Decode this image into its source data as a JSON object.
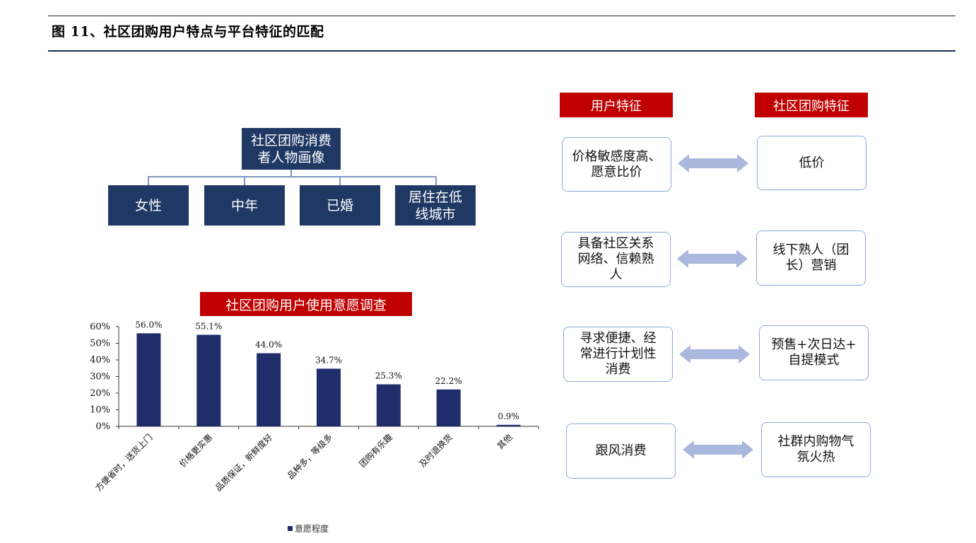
{
  "figure_title": "图 11、社区团购用户特点与平台特征的匹配",
  "persona": {
    "root": "社区团购消费\n者人物画像",
    "children": [
      "女性",
      "中年",
      "已婚",
      "居住在低\n线城市"
    ]
  },
  "survey_title": "社区团购用户使用意愿调查",
  "chart_data": {
    "type": "bar",
    "title": "社区团购用户使用意愿调查",
    "categories": [
      "方便省时，送货上门",
      "价格更实惠",
      "品质保证，新鲜度好",
      "品种多，等级多",
      "团购有乐趣",
      "及时退换货",
      "其他"
    ],
    "series": [
      {
        "name": "意愿程度",
        "values": [
          56.0,
          55.1,
          44.0,
          34.7,
          25.3,
          22.2,
          0.9
        ]
      }
    ],
    "data_labels": [
      "56.0%",
      "55.1%",
      "44.0%",
      "34.7%",
      "25.3%",
      "22.2%",
      "0.9%"
    ],
    "yticks": [
      "0%",
      "10%",
      "20%",
      "30%",
      "40%",
      "50%",
      "60%"
    ],
    "ylim": [
      0,
      60
    ],
    "legend": "bottom",
    "bar_color": "#1f2d6b"
  },
  "legend_label": "意愿程度",
  "match": {
    "user_header": "用户特征",
    "platform_header": "社区团购特征",
    "rows": [
      {
        "user": "价格敏感度高、\n愿意比价",
        "platform": "低价"
      },
      {
        "user": "具备社区关系\n网络、信赖熟\n人",
        "platform": "线下熟人（团\n长）营销"
      },
      {
        "user": "寻求便捷、经\n常进行计划性\n消费",
        "platform": "预售+次日达+\n自提模式"
      },
      {
        "user": "跟风消费",
        "platform": "社群内购物气\n氛火热"
      }
    ]
  },
  "colors": {
    "navy": "#1f3864",
    "red": "#c00000",
    "arrow": "#a9b8dc",
    "border": "#8eaadb"
  }
}
